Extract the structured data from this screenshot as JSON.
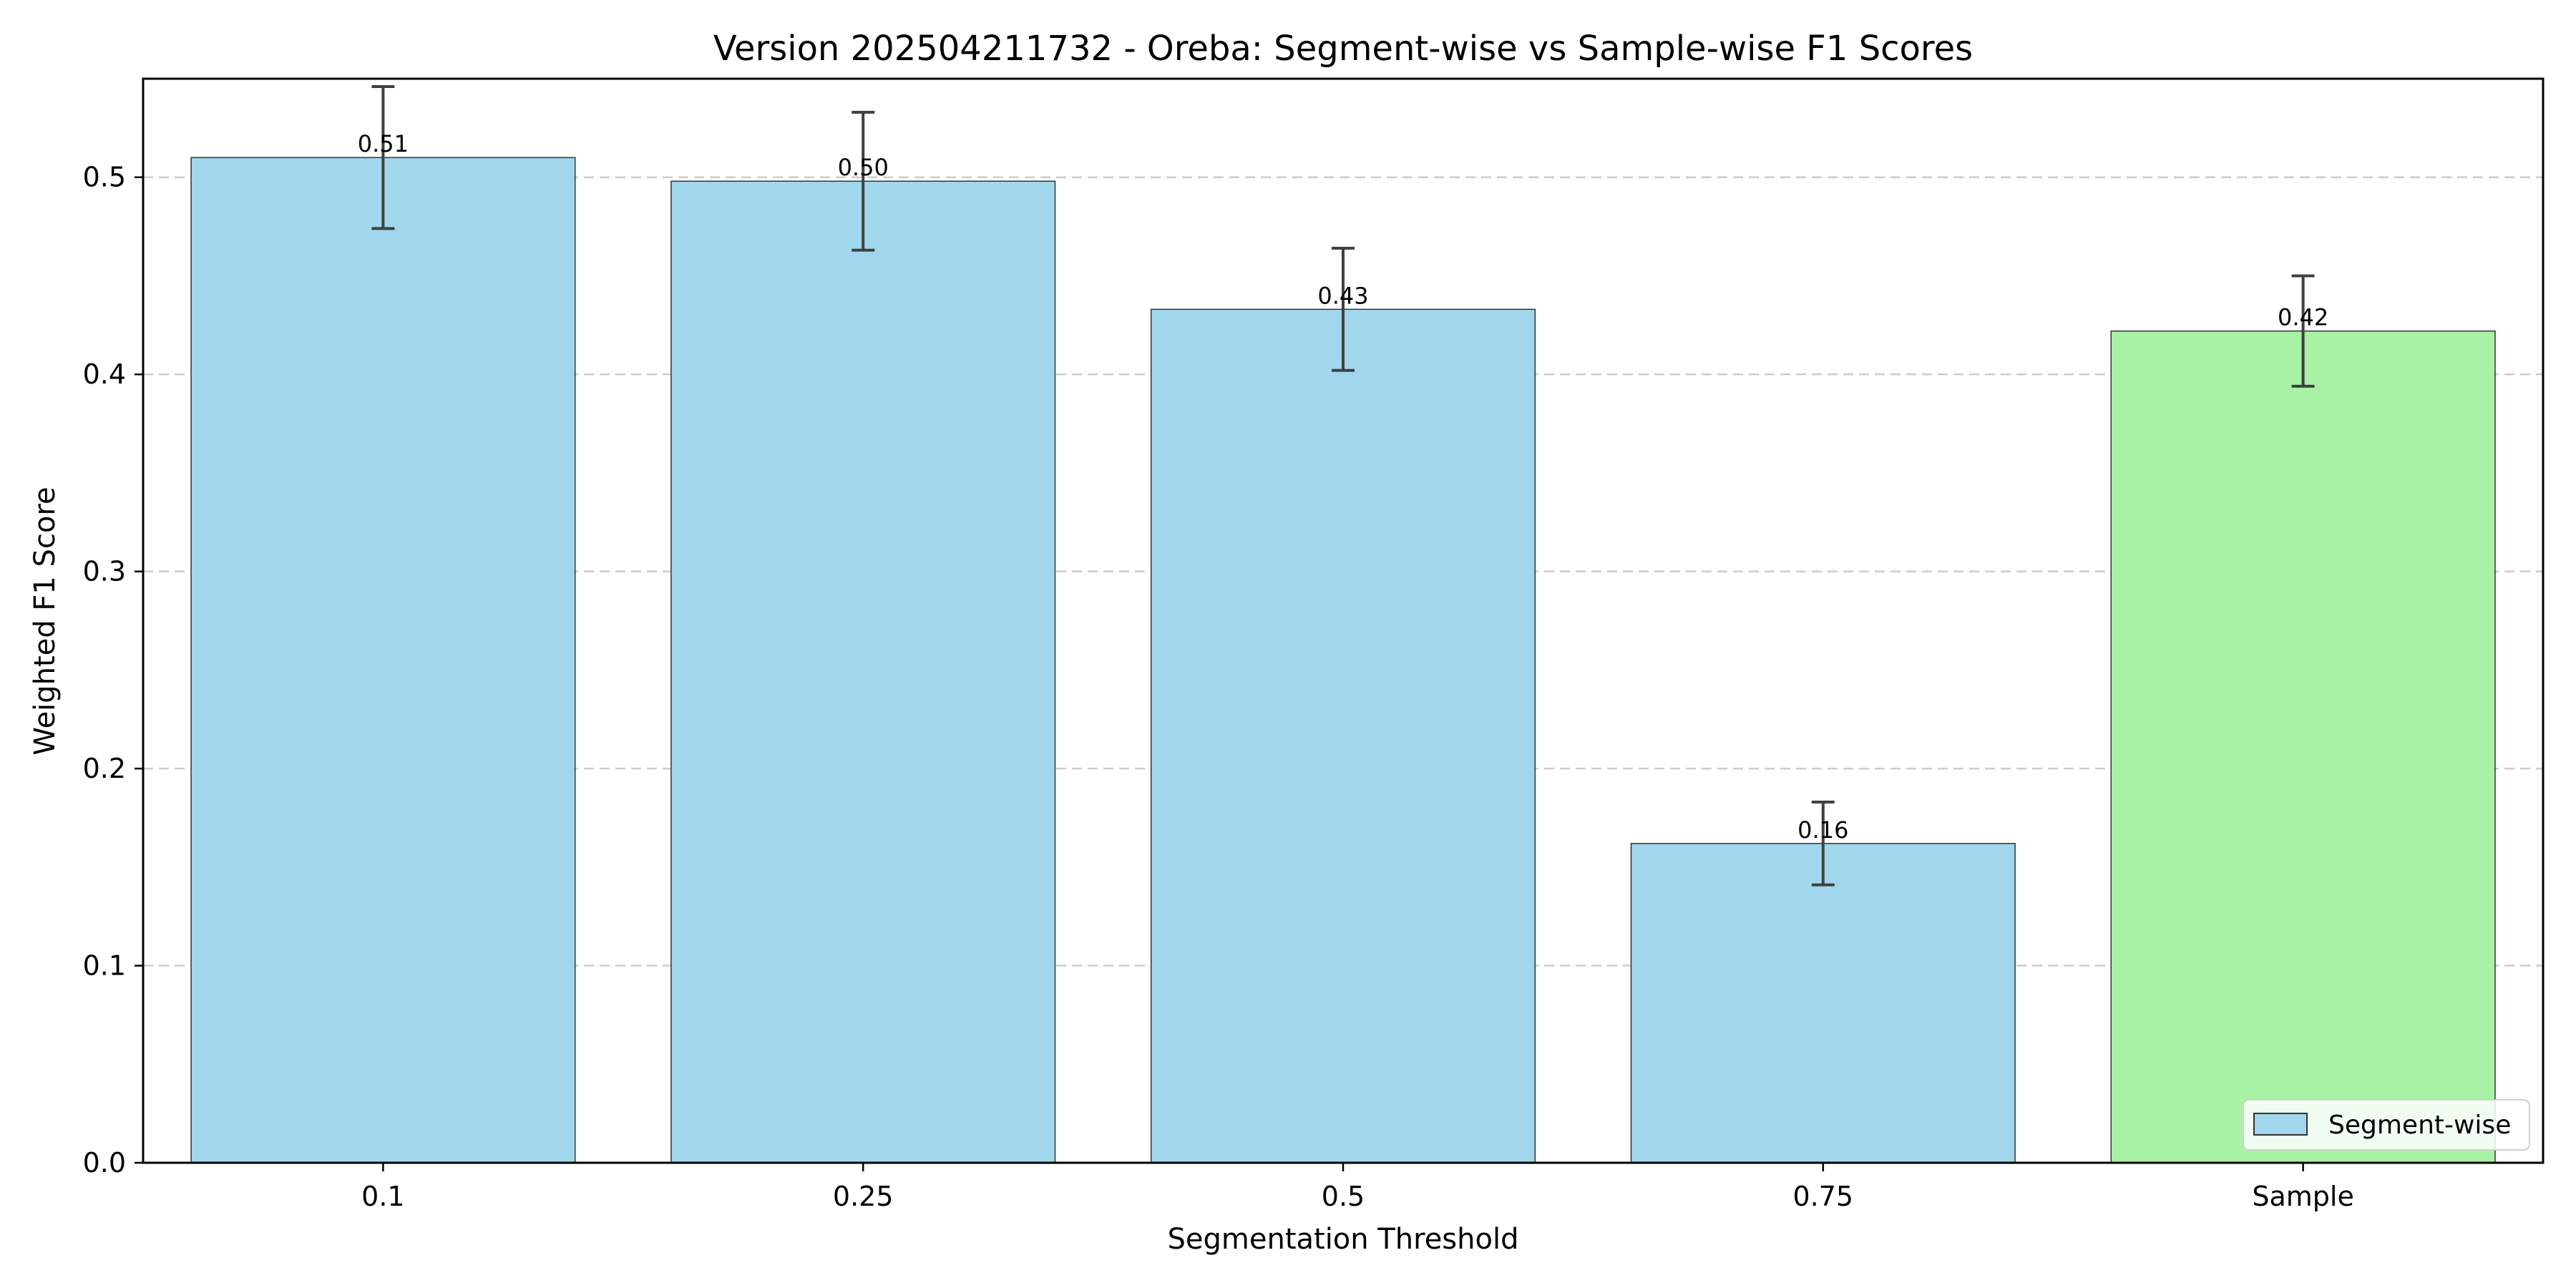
{
  "chart_data": {
    "type": "bar",
    "title": "Version 202504211732 - Oreba: Segment-wise vs Sample-wise F1 Scores",
    "xlabel": "Segmentation Threshold",
    "ylabel": "Weighted F1 Score",
    "categories": [
      "0.1",
      "0.25",
      "0.5",
      "0.75",
      "Sample"
    ],
    "values": [
      0.51,
      0.498,
      0.433,
      0.162,
      0.422
    ],
    "errors": [
      0.036,
      0.035,
      0.031,
      0.021,
      0.028
    ],
    "data_labels": [
      "0.51",
      "0.50",
      "0.43",
      "0.16",
      "0.42"
    ],
    "bar_colors": [
      "#a0d7ec",
      "#a0d7ec",
      "#a0d7ec",
      "#a0d7ec",
      "#a7f2a5"
    ],
    "ylim": [
      0,
      0.55
    ],
    "yticks": [
      0.0,
      0.1,
      0.2,
      0.3,
      0.4,
      0.5
    ],
    "ytick_labels": [
      "0.0",
      "0.1",
      "0.2",
      "0.3",
      "0.4",
      "0.5"
    ],
    "grid": "y-dashed",
    "legend": {
      "position": "bottom-right",
      "entries": [
        {
          "label": "Segment-wise",
          "color": "#a0d7ec"
        }
      ]
    }
  }
}
